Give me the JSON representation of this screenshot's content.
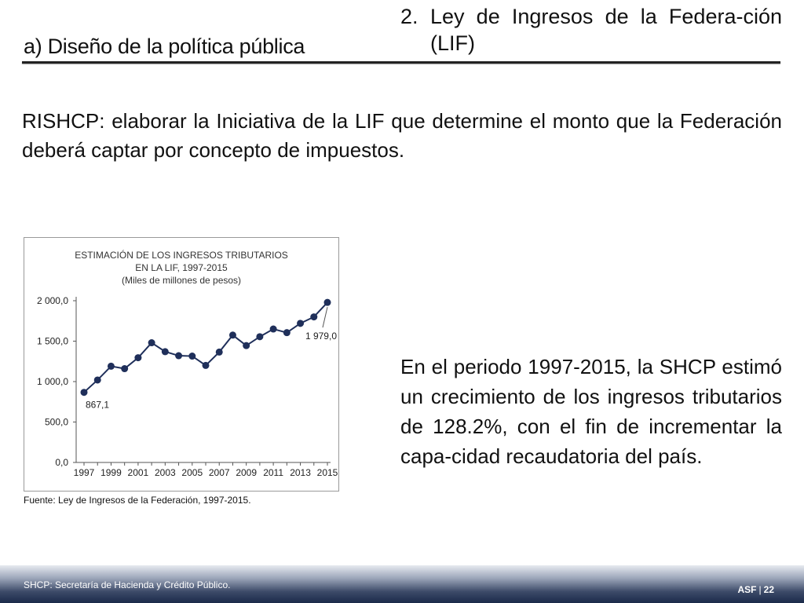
{
  "header": {
    "left_title": "a) Diseño de la política pública",
    "section_number": "2.",
    "section_title": "Ley de Ingresos de la Federa-ción (LIF)"
  },
  "intro_text": "RISHCP: elaborar la Iniciativa de la LIF que determine el monto que la Federación deberá captar por concepto de impuestos.",
  "conclusion_text": "En el periodo 1997-2015, la SHCP estimó un crecimiento de los ingresos tributarios de 128.2%, con el fin de incrementar la capa-cidad recaudatoria del país.",
  "source_text": "Fuente: Ley de Ingresos de la Federación, 1997-2015.",
  "footer": {
    "note": "SHCP: Secretaría de Hacienda y Crédito Público.",
    "org": "ASF",
    "separator": "|",
    "page": "22"
  },
  "colors": {
    "series": "#1f2f5a",
    "axis": "#555555"
  },
  "chart_data": {
    "type": "line",
    "title_lines": [
      "ESTIMACIÓN DE LOS INGRESOS TRIBUTARIOS",
      "EN LA LIF, 1997-2015",
      "(Miles de millones de pesos)"
    ],
    "x": [
      1997,
      1998,
      1999,
      2000,
      2001,
      2002,
      2003,
      2004,
      2005,
      2006,
      2007,
      2008,
      2009,
      2010,
      2011,
      2012,
      2013,
      2014,
      2015
    ],
    "x_tick_labels": [
      "1997",
      "1999",
      "2001",
      "2003",
      "2005",
      "2007",
      "2009",
      "2011",
      "2013",
      "2015"
    ],
    "y_tick_labels": [
      "0,0",
      "500,0",
      "1 000,0",
      "1 500,0",
      "2 000,0"
    ],
    "y_ticks": [
      0,
      500,
      1000,
      1500,
      2000
    ],
    "ylim": [
      0,
      2000
    ],
    "series": [
      {
        "values": [
          867.1,
          1020,
          1190,
          1160,
          1295,
          1480,
          1370,
          1320,
          1315,
          1200,
          1365,
          1575,
          1445,
          1555,
          1650,
          1605,
          1720,
          1800,
          1979.0
        ]
      }
    ],
    "annotations": [
      {
        "text": "867,1",
        "index": 0
      },
      {
        "text": "1 979,0",
        "index": 18
      }
    ],
    "xlabel": "",
    "ylabel": "",
    "grid": false,
    "legend": "none"
  }
}
